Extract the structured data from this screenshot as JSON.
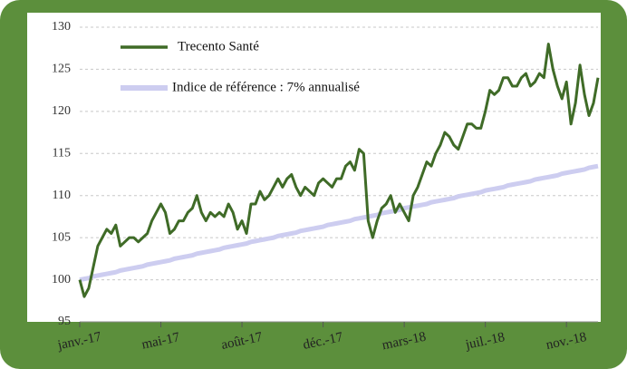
{
  "chart_data": {
    "type": "line",
    "categories": [
      "janv.-17",
      null,
      null,
      null,
      null,
      null,
      null,
      null,
      null,
      null,
      null,
      null,
      null,
      null,
      null,
      null,
      null,
      null,
      "mai-17",
      null,
      null,
      null,
      null,
      null,
      null,
      null,
      null,
      null,
      null,
      null,
      null,
      null,
      null,
      null,
      null,
      null,
      "août-17",
      null,
      null,
      null,
      null,
      null,
      null,
      null,
      null,
      null,
      null,
      null,
      null,
      null,
      null,
      null,
      null,
      null,
      "déc.-17",
      null,
      null,
      null,
      null,
      null,
      null,
      null,
      null,
      null,
      null,
      null,
      null,
      null,
      null,
      null,
      null,
      null,
      "mars-18",
      null,
      null,
      null,
      null,
      null,
      null,
      null,
      null,
      null,
      null,
      null,
      null,
      null,
      null,
      null,
      null,
      null,
      "juil.-18",
      null,
      null,
      null,
      null,
      null,
      null,
      null,
      null,
      null,
      null,
      null,
      null,
      null,
      null,
      null,
      null,
      null,
      "nov.-18",
      null,
      null,
      null,
      null,
      null,
      null,
      null
    ],
    "series": [
      {
        "name": "Trecento Santé",
        "color": "#3f6b27",
        "values": [
          100,
          98,
          99,
          101.5,
          104,
          105,
          106,
          105.5,
          106.5,
          104,
          104.5,
          105,
          105,
          104.5,
          105,
          105.5,
          107,
          108,
          109,
          108,
          105.5,
          106,
          107,
          107,
          108,
          108.5,
          110,
          108,
          107,
          108,
          107.5,
          108,
          107.5,
          109,
          108,
          106,
          107,
          105.5,
          109,
          109,
          110.5,
          109.5,
          110,
          111,
          112,
          111,
          112,
          112.5,
          111,
          110,
          111,
          110.5,
          110,
          111.5,
          112,
          111.5,
          111,
          112,
          112,
          113.5,
          114,
          113,
          115.5,
          115,
          107,
          105,
          107,
          108.5,
          109,
          110,
          108,
          109,
          108,
          107,
          110,
          111,
          112.5,
          114,
          113.5,
          115,
          116,
          117.5,
          117,
          116,
          115.5,
          117,
          118.5,
          118.5,
          118,
          118,
          120,
          122.5,
          122,
          122.5,
          124,
          124,
          123,
          123,
          124,
          124.5,
          123,
          123.5,
          124.5,
          124,
          128,
          125,
          123,
          121.5,
          123.5,
          118.5,
          121,
          125.5,
          122,
          119.5,
          121,
          124
        ]
      },
      {
        "name": "Indice de référence : 7% annualisé",
        "color": "#cdcdf0",
        "values": [
          100.0,
          100.1,
          100.2,
          100.4,
          100.5,
          100.6,
          100.7,
          100.8,
          100.9,
          101.1,
          101.2,
          101.3,
          101.4,
          101.5,
          101.6,
          101.8,
          101.9,
          102.0,
          102.1,
          102.2,
          102.3,
          102.5,
          102.6,
          102.7,
          102.8,
          102.9,
          103.1,
          103.2,
          103.3,
          103.4,
          103.5,
          103.6,
          103.8,
          103.9,
          104.0,
          104.1,
          104.2,
          104.3,
          104.5,
          104.6,
          104.7,
          104.8,
          104.9,
          105.0,
          105.2,
          105.3,
          105.4,
          105.5,
          105.6,
          105.8,
          105.9,
          106.0,
          106.1,
          106.2,
          106.3,
          106.5,
          106.6,
          106.7,
          106.8,
          106.9,
          107.0,
          107.2,
          107.3,
          107.4,
          107.5,
          107.6,
          107.7,
          107.9,
          108.0,
          108.1,
          108.2,
          108.3,
          108.5,
          108.6,
          108.7,
          108.8,
          108.9,
          109.0,
          109.2,
          109.3,
          109.4,
          109.5,
          109.6,
          109.7,
          109.9,
          110.0,
          110.1,
          110.2,
          110.3,
          110.4,
          110.6,
          110.7,
          110.8,
          110.9,
          111.0,
          111.2,
          111.3,
          111.4,
          111.5,
          111.6,
          111.7,
          111.9,
          112.0,
          112.1,
          112.2,
          112.3,
          112.4,
          112.6,
          112.7,
          112.8,
          112.9,
          113.0,
          113.1,
          113.3,
          113.4,
          113.5
        ]
      }
    ],
    "ylim": [
      95,
      130
    ],
    "yticks": [
      95,
      100,
      105,
      110,
      115,
      120,
      125,
      130
    ],
    "grid": true,
    "legend": "upper left"
  }
}
